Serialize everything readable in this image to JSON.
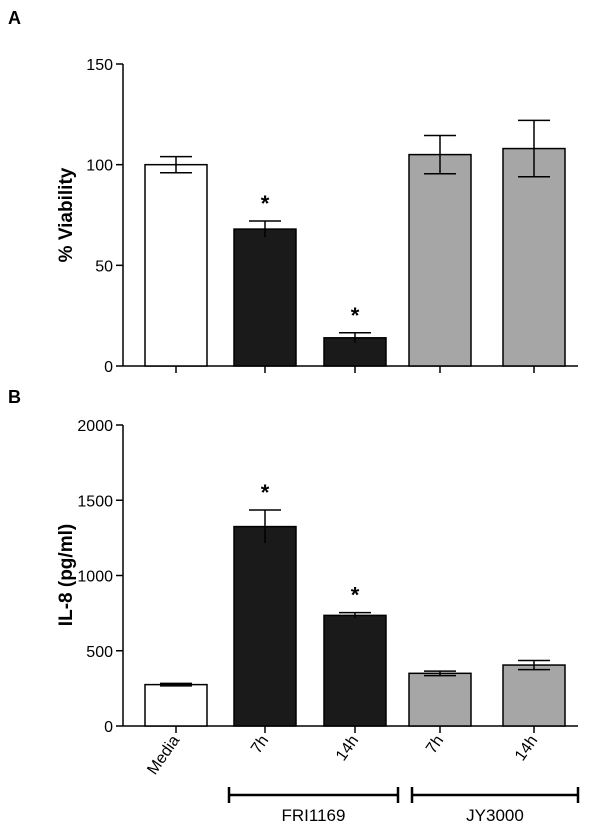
{
  "chart_data": [
    {
      "panel_label": "A",
      "type": "bar",
      "categories": [
        "Media",
        "7h",
        "14h",
        "7h",
        "14h"
      ],
      "values": [
        100,
        68,
        14,
        105,
        108
      ],
      "errors": [
        4,
        4,
        2.5,
        9.5,
        14
      ],
      "significant": [
        false,
        true,
        true,
        false,
        false
      ],
      "bar_colors": [
        "#ffffff",
        "#1a1a1a",
        "#1a1a1a",
        "#a6a6a6",
        "#a6a6a6"
      ],
      "ylabel": "% Viability",
      "xlabel": "",
      "ylim": [
        0,
        150
      ],
      "yticks": [
        "0",
        "50",
        "100",
        "150"
      ],
      "significance_marker": "*",
      "grid": false
    },
    {
      "panel_label": "B",
      "type": "bar",
      "categories": [
        "Media",
        "7h",
        "14h",
        "7h",
        "14h"
      ],
      "values": [
        275,
        1325,
        735,
        350,
        405
      ],
      "errors": [
        8,
        110,
        18,
        15,
        30
      ],
      "significant": [
        false,
        true,
        true,
        false,
        false
      ],
      "bar_colors": [
        "#ffffff",
        "#1a1a1a",
        "#1a1a1a",
        "#a6a6a6",
        "#a6a6a6"
      ],
      "ylabel": "IL-8 (pg/ml)",
      "xlabel": "",
      "ylim": [
        0,
        2000
      ],
      "yticks": [
        "0",
        "500",
        "1000",
        "1500",
        "2000"
      ],
      "significance_marker": "*",
      "grid": false,
      "category_labels": [
        "Media",
        "7h",
        "14h",
        "7h",
        "14h"
      ],
      "groups": [
        {
          "name": "FRI1169",
          "categories": [
            1,
            2
          ]
        },
        {
          "name": "JY3000",
          "categories": [
            3,
            4
          ]
        }
      ]
    }
  ]
}
